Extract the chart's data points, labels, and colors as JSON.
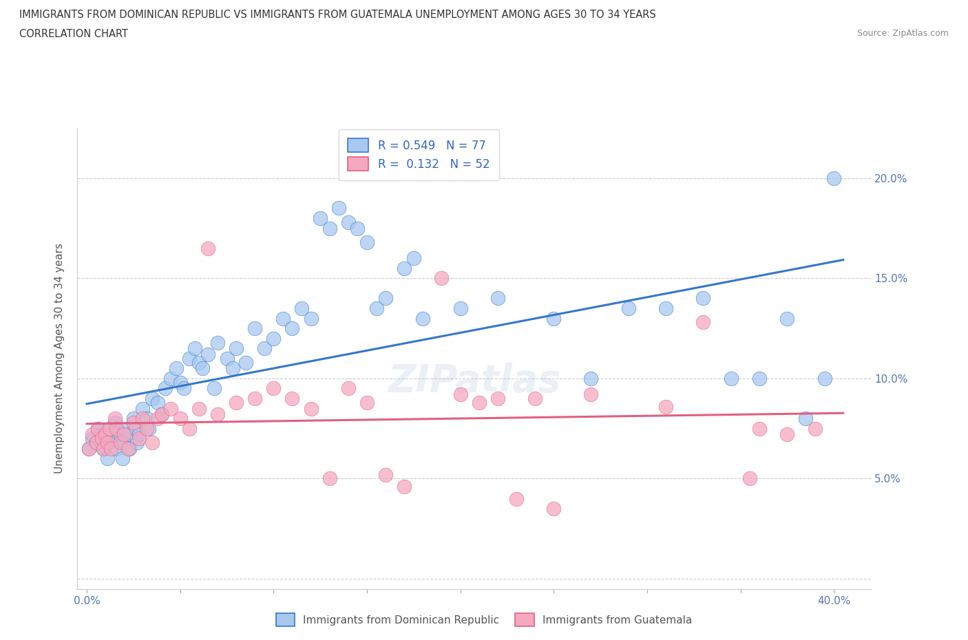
{
  "title_line1": "IMMIGRANTS FROM DOMINICAN REPUBLIC VS IMMIGRANTS FROM GUATEMALA UNEMPLOYMENT AMONG AGES 30 TO 34 YEARS",
  "title_line2": "CORRELATION CHART",
  "source_text": "Source: ZipAtlas.com",
  "ylabel": "Unemployment Among Ages 30 to 34 years",
  "xlim": [
    -0.005,
    0.42
  ],
  "ylim": [
    -0.005,
    0.225
  ],
  "xticks": [
    0.0,
    0.05,
    0.1,
    0.15,
    0.2,
    0.25,
    0.3,
    0.35,
    0.4
  ],
  "yticks": [
    0.0,
    0.05,
    0.1,
    0.15,
    0.2
  ],
  "color_blue": "#a8c8f0",
  "color_pink": "#f5a8c0",
  "line_blue": "#3377cc",
  "line_pink": "#e06080",
  "legend_r_blue": "R = 0.549",
  "legend_n_blue": "N = 77",
  "legend_r_pink": "R =  0.132",
  "legend_n_pink": "N = 52",
  "legend_label_blue": "Immigrants from Dominican Republic",
  "legend_label_pink": "Immigrants from Guatemala",
  "blue_x": [
    0.001,
    0.003,
    0.005,
    0.006,
    0.008,
    0.009,
    0.01,
    0.011,
    0.012,
    0.013,
    0.014,
    0.015,
    0.016,
    0.017,
    0.018,
    0.019,
    0.02,
    0.021,
    0.022,
    0.023,
    0.025,
    0.026,
    0.027,
    0.028,
    0.03,
    0.032,
    0.033,
    0.035,
    0.038,
    0.04,
    0.042,
    0.045,
    0.048,
    0.05,
    0.052,
    0.055,
    0.058,
    0.06,
    0.062,
    0.065,
    0.068,
    0.07,
    0.075,
    0.078,
    0.08,
    0.085,
    0.09,
    0.095,
    0.1,
    0.105,
    0.11,
    0.115,
    0.12,
    0.125,
    0.13,
    0.135,
    0.14,
    0.145,
    0.15,
    0.155,
    0.16,
    0.17,
    0.175,
    0.18,
    0.2,
    0.22,
    0.25,
    0.27,
    0.29,
    0.31,
    0.33,
    0.345,
    0.36,
    0.375,
    0.385,
    0.395,
    0.4
  ],
  "blue_y": [
    0.065,
    0.07,
    0.068,
    0.075,
    0.072,
    0.065,
    0.07,
    0.06,
    0.068,
    0.075,
    0.072,
    0.078,
    0.065,
    0.07,
    0.072,
    0.06,
    0.068,
    0.075,
    0.072,
    0.065,
    0.08,
    0.075,
    0.068,
    0.072,
    0.085,
    0.08,
    0.075,
    0.09,
    0.088,
    0.082,
    0.095,
    0.1,
    0.105,
    0.098,
    0.095,
    0.11,
    0.115,
    0.108,
    0.105,
    0.112,
    0.095,
    0.118,
    0.11,
    0.105,
    0.115,
    0.108,
    0.125,
    0.115,
    0.12,
    0.13,
    0.125,
    0.135,
    0.13,
    0.18,
    0.175,
    0.185,
    0.178,
    0.175,
    0.168,
    0.135,
    0.14,
    0.155,
    0.16,
    0.13,
    0.135,
    0.14,
    0.13,
    0.1,
    0.135,
    0.135,
    0.14,
    0.1,
    0.1,
    0.13,
    0.08,
    0.1,
    0.2
  ],
  "pink_x": [
    0.001,
    0.003,
    0.005,
    0.006,
    0.008,
    0.009,
    0.01,
    0.011,
    0.012,
    0.013,
    0.015,
    0.016,
    0.018,
    0.02,
    0.022,
    0.025,
    0.028,
    0.03,
    0.032,
    0.035,
    0.038,
    0.04,
    0.045,
    0.05,
    0.055,
    0.06,
    0.065,
    0.07,
    0.08,
    0.09,
    0.1,
    0.11,
    0.12,
    0.13,
    0.14,
    0.15,
    0.16,
    0.17,
    0.19,
    0.2,
    0.21,
    0.22,
    0.23,
    0.24,
    0.25,
    0.27,
    0.31,
    0.33,
    0.355,
    0.36,
    0.375,
    0.39
  ],
  "pink_y": [
    0.065,
    0.072,
    0.068,
    0.075,
    0.07,
    0.065,
    0.072,
    0.068,
    0.075,
    0.065,
    0.08,
    0.075,
    0.068,
    0.072,
    0.065,
    0.078,
    0.07,
    0.08,
    0.075,
    0.068,
    0.08,
    0.082,
    0.085,
    0.08,
    0.075,
    0.085,
    0.165,
    0.082,
    0.088,
    0.09,
    0.095,
    0.09,
    0.085,
    0.05,
    0.095,
    0.088,
    0.052,
    0.046,
    0.15,
    0.092,
    0.088,
    0.09,
    0.04,
    0.09,
    0.035,
    0.092,
    0.086,
    0.128,
    0.05,
    0.075,
    0.072,
    0.075
  ]
}
